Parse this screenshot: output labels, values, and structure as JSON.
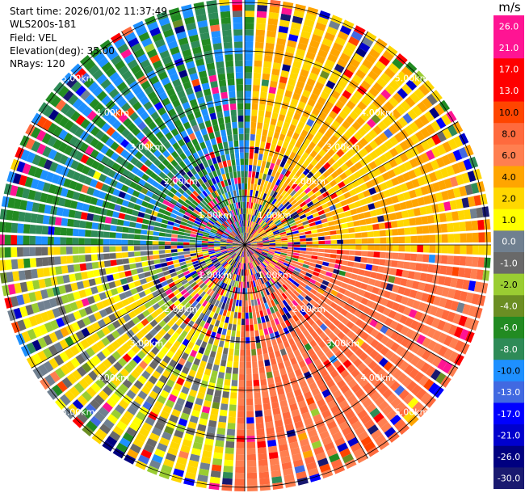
{
  "info": {
    "start_time": "Start time: 2026/01/02 11:37:49",
    "site": "WLS200s-181",
    "field": "Field: VEL",
    "elevation": "Elevation(deg): 35.00",
    "nrays": "NRays: 120"
  },
  "colorbar": {
    "unit": "m/s",
    "labels": [
      "26.0",
      "21.0",
      "17.0",
      "13.0",
      "10.0",
      "8.0",
      "6.0",
      "4.0",
      "2.0",
      "1.0",
      "0.0",
      "-1.0",
      "-2.0",
      "-4.0",
      "-6.0",
      "-8.0",
      "-10.0",
      "-13.0",
      "-17.0",
      "-21.0",
      "-26.0",
      "-30.0"
    ],
    "colors": [
      "#ff1493",
      "#ff1493",
      "#ff0000",
      "#ff0000",
      "#ff4500",
      "#ff6a3d",
      "#ff7f50",
      "#ffa500",
      "#ffd700",
      "#ffff00",
      "#708090",
      "#696969",
      "#9acd32",
      "#6b8e23",
      "#228b22",
      "#2e8b57",
      "#1e90ff",
      "#4169e1",
      "#0000ff",
      "#0000cd",
      "#000080",
      "#191970"
    ]
  },
  "chart_data": {
    "type": "heatmap",
    "subtype": "polar PPI scan",
    "field": "VEL",
    "units": "m/s",
    "elevation_deg": 35.0,
    "n_rays": 120,
    "range_rings_km": [
      1,
      2,
      3,
      4,
      5
    ],
    "ring_labels": [
      "1.00km",
      "2.00km",
      "3.00km",
      "4.00km",
      "5.00km"
    ],
    "color_levels": [
      -30,
      -26,
      -21,
      -17,
      -13,
      -10,
      -8,
      -6,
      -4,
      -2,
      -1,
      0,
      1,
      2,
      4,
      6,
      8,
      10,
      13,
      17,
      21,
      26
    ],
    "dominant_sectors": [
      {
        "direction": "north-west",
        "velocity_range": [
          -10,
          -4
        ]
      },
      {
        "direction": "north-east",
        "velocity_range": [
          2,
          6
        ]
      },
      {
        "direction": "south-east",
        "velocity_range": [
          6,
          10
        ]
      },
      {
        "direction": "south-west",
        "velocity_range": [
          -2,
          4
        ]
      }
    ]
  }
}
